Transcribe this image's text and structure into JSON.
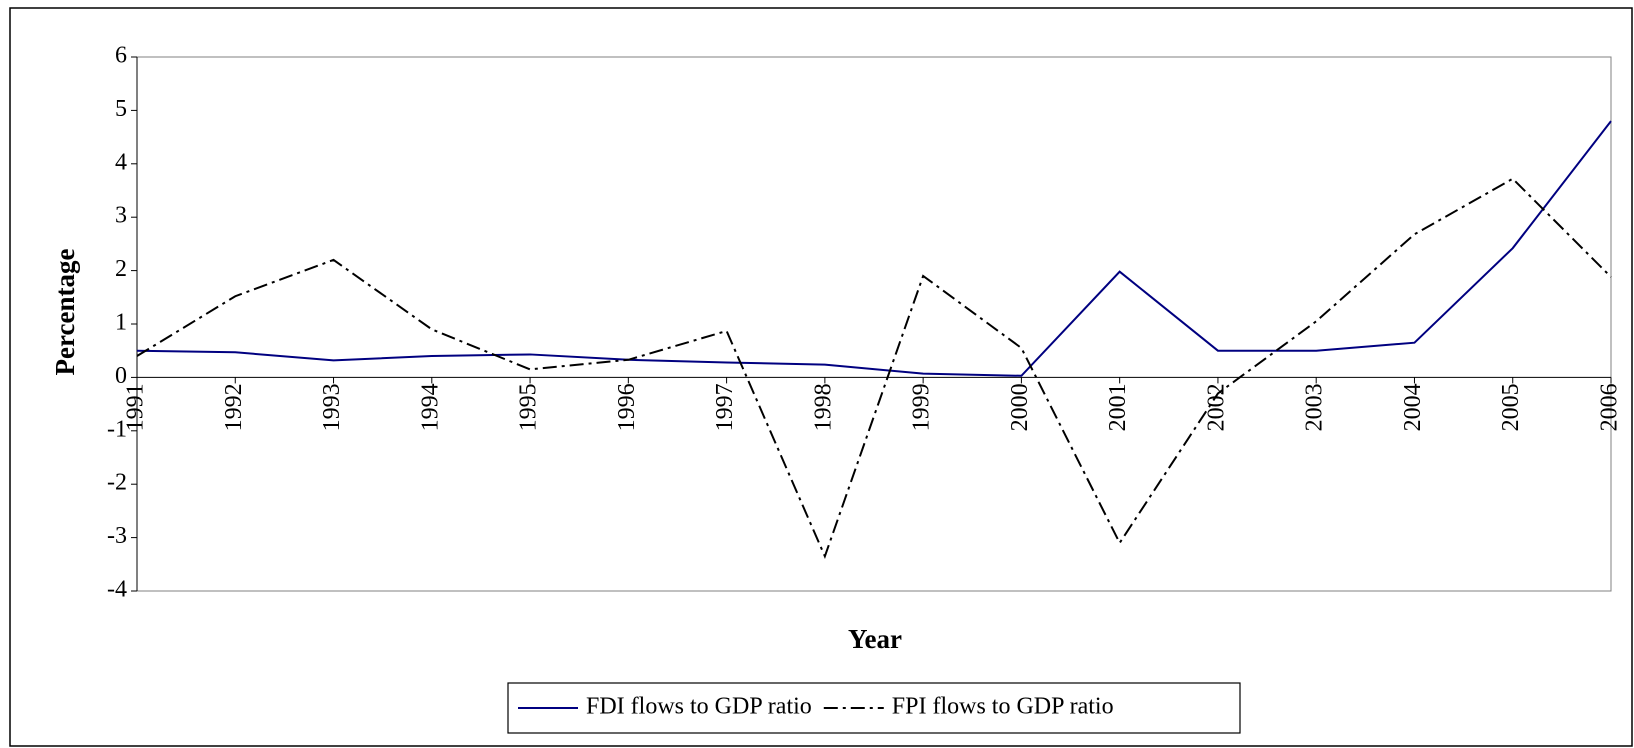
{
  "chart_data": {
    "type": "line",
    "y_label": "Percentage",
    "x_label": "Year",
    "categories": [
      "1991",
      "1992",
      "1993",
      "1994",
      "1995",
      "1996",
      "1997",
      "1998",
      "1999",
      "2000",
      "2001",
      "2002",
      "2003",
      "2004",
      "2005",
      "2006"
    ],
    "series": [
      {
        "name": "FDI flows to GDP ratio",
        "color": "#000080",
        "dash": "none",
        "values": [
          0.5,
          0.47,
          0.32,
          0.4,
          0.43,
          0.33,
          0.28,
          0.24,
          0.07,
          0.03,
          1.98,
          0.5,
          0.5,
          0.65,
          2.42,
          4.8
        ]
      },
      {
        "name": "FPI flows to GDP ratio",
        "color": "#000000",
        "dash": "14 5 3 5",
        "values": [
          0.4,
          1.52,
          2.2,
          0.9,
          0.15,
          0.33,
          0.87,
          -3.35,
          1.9,
          0.55,
          -3.1,
          -0.3,
          1.05,
          2.68,
          3.72,
          1.88
        ]
      }
    ],
    "ylim": [
      -4,
      6
    ],
    "yticks": [
      -4,
      -3,
      -2,
      -1,
      0,
      1,
      2,
      3,
      4,
      5,
      6
    ],
    "legend": "bottom"
  }
}
